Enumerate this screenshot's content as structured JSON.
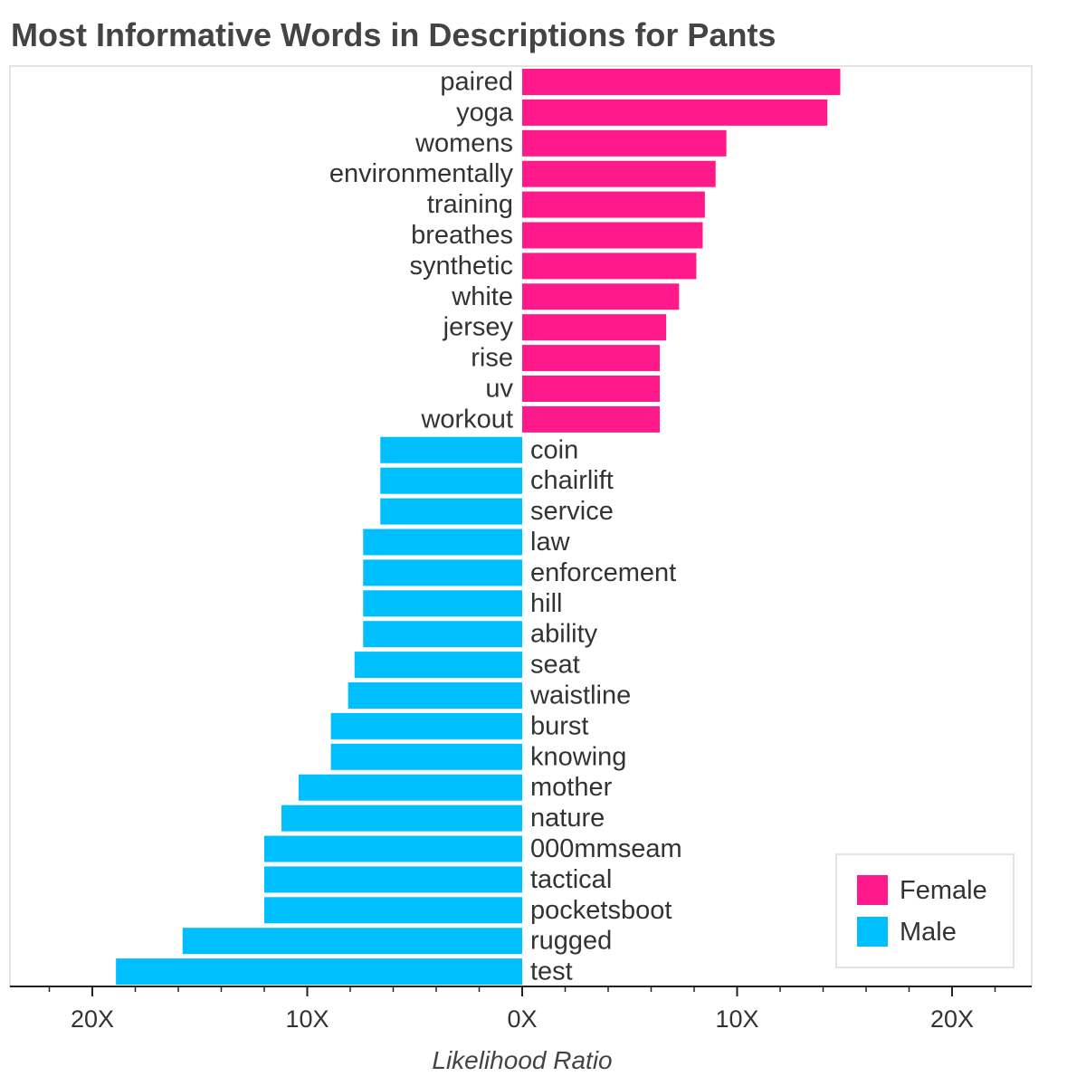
{
  "chart_data": {
    "type": "bar",
    "orientation": "horizontal-diverging",
    "title": "Most Informative Words in Descriptions for Pants",
    "xlabel": "Likelihood Ratio",
    "xlim": [
      -24,
      24
    ],
    "xticks": [
      -20,
      -10,
      0,
      10,
      20
    ],
    "xtick_labels": [
      "20X",
      "10X",
      "0X",
      "10X",
      "20X"
    ],
    "legend_position": "bottom-right",
    "series": [
      {
        "name": "Female",
        "color": "#ff1a8c",
        "categories": [
          "paired",
          "yoga",
          "womens",
          "environmentally",
          "training",
          "breathes",
          "synthetic",
          "white",
          "jersey",
          "rise",
          "uv",
          "workout"
        ],
        "values": [
          14.8,
          14.2,
          9.5,
          9.0,
          8.5,
          8.4,
          8.1,
          7.3,
          6.7,
          6.4,
          6.4,
          6.4
        ]
      },
      {
        "name": "Male",
        "color": "#00bfff",
        "categories": [
          "coin",
          "chairlift",
          "service",
          "law",
          "enforcement",
          "hill",
          "ability",
          "seat",
          "waistline",
          "burst",
          "knowing",
          "mother",
          "nature",
          "000mmseam",
          "tactical",
          "pocketsboot",
          "rugged",
          "test"
        ],
        "values": [
          6.6,
          6.6,
          6.6,
          7.4,
          7.4,
          7.4,
          7.4,
          7.8,
          8.1,
          8.9,
          8.9,
          10.4,
          11.2,
          12.0,
          12.0,
          12.0,
          15.8,
          18.9
        ]
      }
    ]
  }
}
